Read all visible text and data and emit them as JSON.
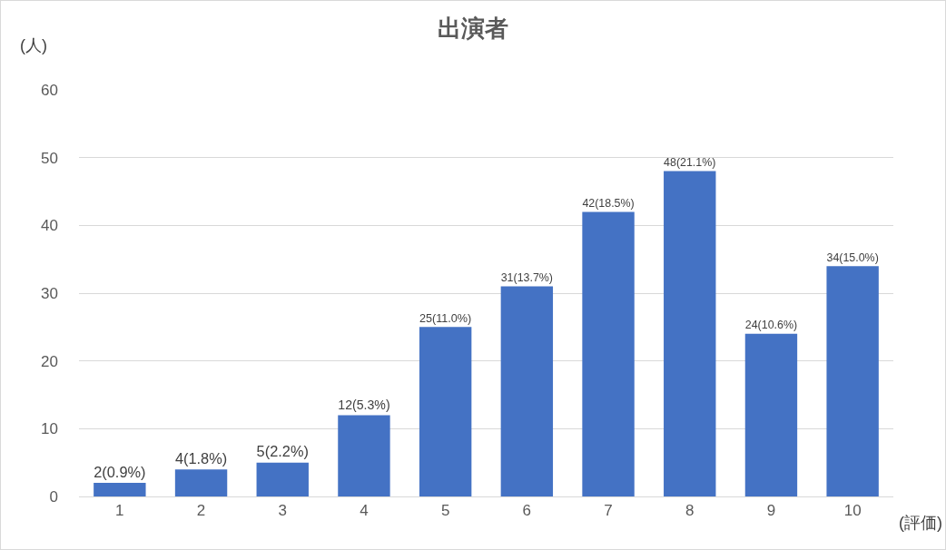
{
  "chart_data": {
    "type": "bar",
    "title": "出演者",
    "xlabel": "(評価)",
    "ylabel": "(人)",
    "categories": [
      "1",
      "2",
      "3",
      "4",
      "5",
      "6",
      "7",
      "8",
      "9",
      "10"
    ],
    "values": [
      2,
      4,
      5,
      12,
      25,
      31,
      42,
      48,
      24,
      34
    ],
    "value_labels": [
      "2(0.9%)",
      "4(1.8%)",
      "5(2.2%)",
      "12(5.3%)",
      "25(11.0%)",
      "31(13.7%)",
      "42(18.5%)",
      "48(21.1%)",
      "24(10.6%)",
      "34(15.0%)"
    ],
    "color": "#4472c4",
    "ylim": [
      0,
      60
    ],
    "yticks": [
      0,
      10,
      20,
      30,
      40,
      50,
      60
    ],
    "grid": "y",
    "legend": false
  }
}
